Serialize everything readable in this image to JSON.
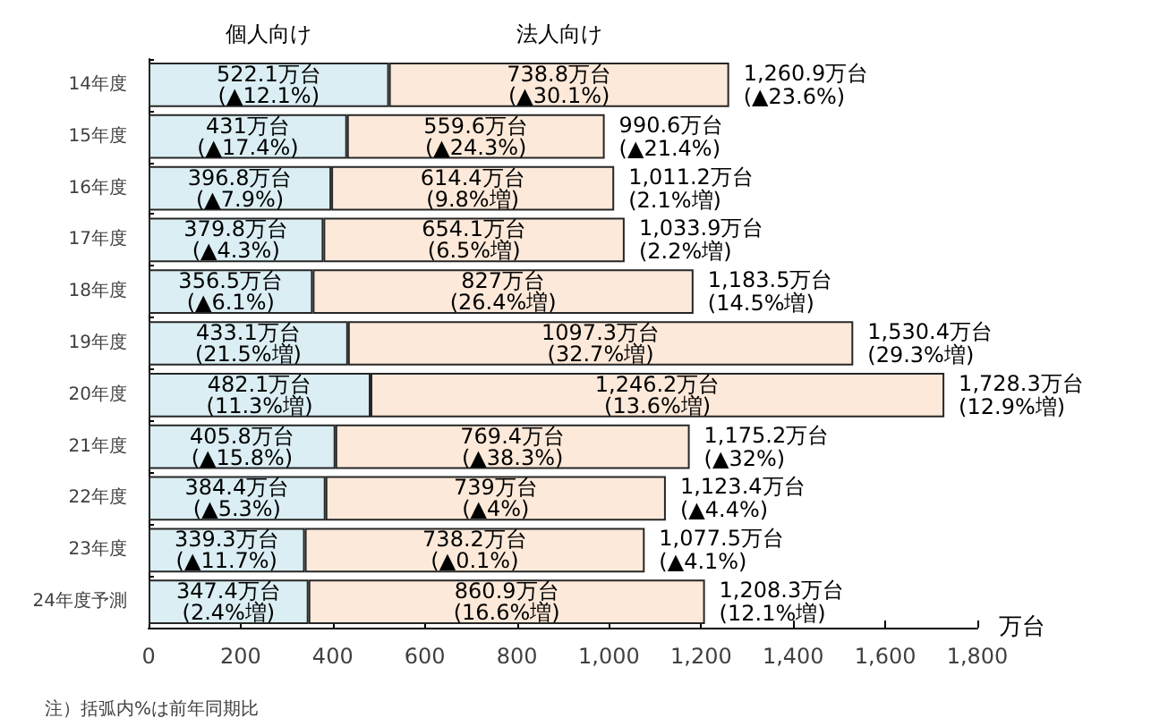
{
  "chart_data": {
    "type": "bar",
    "orientation": "horizontal",
    "stacked": true,
    "categories": [
      "14年度",
      "15年度",
      "16年度",
      "17年度",
      "18年度",
      "19年度",
      "20年度",
      "21年度",
      "22年度",
      "23年度",
      "24年度予測"
    ],
    "series": [
      {
        "name": "個人向け",
        "color": "#daeef3",
        "values": [
          522.1,
          431,
          396.8,
          379.8,
          356.5,
          433.1,
          482.1,
          405.8,
          384.4,
          339.3,
          347.4
        ],
        "value_labels": [
          "522.1万台\n(▲12.1%)",
          "431万台\n(▲17.4%)",
          "396.8万台\n(▲7.9%)",
          "379.8万台\n(▲4.3%)",
          "356.5万台\n(▲6.1%)",
          "433.1万台\n(21.5%増)",
          "482.1万台\n(11.3%増)",
          "405.8万台\n(▲15.8%)",
          "384.4万台\n(▲5.3%)",
          "339.3万台\n(▲11.7%)",
          "347.4万台\n(2.4%増)"
        ]
      },
      {
        "name": "法人向け",
        "color": "#fde9d9",
        "values": [
          738.8,
          559.6,
          614.4,
          654.1,
          827,
          1097.3,
          1246.2,
          769.4,
          739,
          738.2,
          860.9
        ],
        "value_labels": [
          "738.8万台\n(▲30.1%)",
          "559.6万台\n(▲24.3%)",
          "614.4万台\n(9.8%増)",
          "654.1万台\n(6.5%増)",
          "827万台\n(26.4%増)",
          "1097.3万台\n(32.7%増)",
          "1,246.2万台\n(13.6%増)",
          "769.4万台\n(▲38.3%)",
          "739万台\n(▲4%)",
          "738.2万台\n(▲0.1%)",
          "860.9万台\n(16.6%増)"
        ]
      }
    ],
    "totals": [
      "1,260.9万台\n(▲23.6%)",
      "990.6万台\n(▲21.4%)",
      "1,011.2万台\n(2.1%増)",
      "1,033.9万台\n(2.2%増)",
      "1,183.5万台\n(14.5%増)",
      "1,530.4万台\n(29.3%増)",
      "1,728.3万台\n(12.9%増)",
      "1,175.2万台\n(▲32%)",
      "1,123.4万台\n(▲4.4%)",
      "1,077.5万台\n(▲4.1%)",
      "1,208.3万台\n(12.1%増)"
    ],
    "xlabel": "万台",
    "xlim": [
      0,
      1800
    ],
    "xticks": [
      0,
      200,
      400,
      600,
      800,
      {
        "value": 1000,
        "label": "1,000"
      },
      {
        "value": 1200,
        "label": "1,200"
      },
      {
        "value": 1400,
        "label": "1,400"
      },
      {
        "value": 1600,
        "label": "1,600"
      },
      {
        "value": 1800,
        "label": "1,800"
      }
    ],
    "annotations": [
      "注）括弧内%は前年同期比"
    ]
  }
}
